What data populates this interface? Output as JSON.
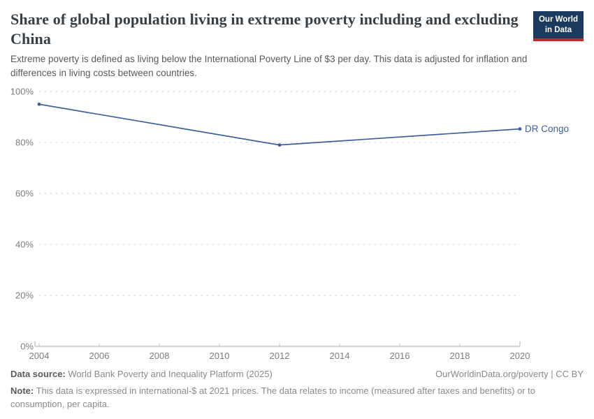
{
  "header": {
    "title": "Share of global population living in extreme poverty including and excluding China",
    "subtitle": "Extreme poverty is defined as living below the International Poverty Line of $3 per day. This data is adjusted for inflation and differences in living costs between countries.",
    "logo": {
      "line1": "Our World",
      "line2": "in Data"
    }
  },
  "chart_data": {
    "type": "line",
    "title": "Share of global population living in extreme poverty including and excluding China",
    "x": [
      2004,
      2012,
      2020
    ],
    "series": [
      {
        "name": "DR Congo",
        "values": [
          95,
          79,
          85.3
        ],
        "color": "#3e5f9a"
      }
    ],
    "end_label": "DR Congo",
    "xlabel": "",
    "ylabel": "",
    "xlim": [
      2004,
      2020
    ],
    "ylim": [
      0,
      100
    ],
    "x_ticks": [
      2004,
      2006,
      2008,
      2010,
      2012,
      2014,
      2016,
      2018,
      2020
    ],
    "y_ticks": [
      0,
      20,
      40,
      60,
      80,
      100
    ],
    "y_tick_suffix": "%",
    "grid": "horizontal-dashed",
    "legend": "none-line-end-label"
  },
  "footer": {
    "datasource_label": "Data source:",
    "datasource_text": " World Bank Poverty and Inequality Platform (2025)",
    "attribution": "OurWorldinData.org/poverty | CC BY",
    "note_label": "Note:",
    "note_text": " This data is expressed in international-$ at 2021 prices. The data relates to income (measured after taxes and benefits) or to consumption, per capita."
  },
  "colors": {
    "line": "#3e5f9a",
    "logo_bg": "#1c3a5e",
    "logo_bar": "#c7282d",
    "grid": "#dcdcdc",
    "axis": "#a8a8a8",
    "tick": "#bdbdbd",
    "tick_label": "#7d7d7d",
    "title_text": "#373f45",
    "subtitle_text": "#5a5a5a",
    "footer_text": "#8a8a8a"
  }
}
